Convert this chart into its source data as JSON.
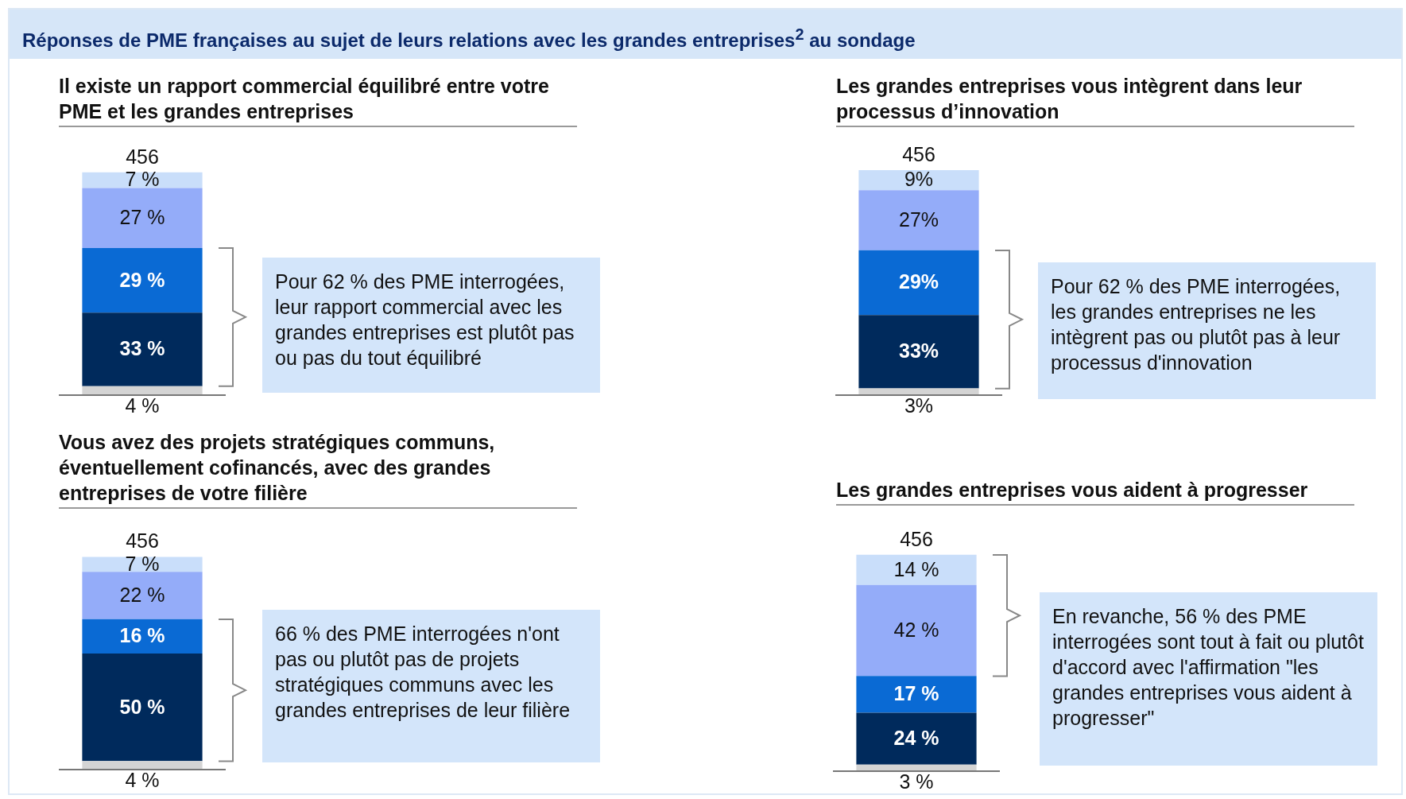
{
  "chart_data": [
    {
      "type": "bar",
      "stacked": true,
      "title": "Réponses de PME françaises au sujet de leurs relations avec les grandes entreprises$^{2}$ au sondage",
      "subtitle": "Il existe un rapport commercial équilibré entre votre PME et les grandes entreprises",
      "categories": [
        null
      ],
      "legend": false,
      "tick_labels": false,
      "series": [
        {
          "color": "#d4d4d4",
          "values": [
            4
          ],
          "value_labels": [
            "4 %"
          ]
        },
        {
          "color": "#002a5c",
          "values": [
            33
          ],
          "value_labels": [
            "33 %"
          ]
        },
        {
          "color": "#0a6ad4",
          "values": [
            29
          ],
          "value_labels": [
            "29 %"
          ]
        },
        {
          "color": "#94acf9",
          "values": [
            27
          ],
          "value_labels": [
            "27 %"
          ]
        },
        {
          "color": "#c9defa",
          "values": [
            7
          ],
          "value_labels": [
            "7 %"
          ]
        }
      ],
      "annotations": [
        "456",
        "Pour 62 % des PME interrogées, leur rapport commercial avec les grandes entreprises est plutôt pas ou pas du tout équilibré"
      ]
    },
    {
      "type": "bar",
      "stacked": true,
      "subtitle": "Les grandes entreprises vous intègrent dans leur processus d’innovation",
      "categories": [
        null
      ],
      "legend": false,
      "tick_labels": false,
      "series": [
        {
          "color": "#d4d4d4",
          "values": [
            3
          ],
          "value_labels": [
            "3%"
          ]
        },
        {
          "color": "#002a5c",
          "values": [
            33
          ],
          "value_labels": [
            "33%"
          ]
        },
        {
          "color": "#0a6ad4",
          "values": [
            29
          ],
          "value_labels": [
            "29%"
          ]
        },
        {
          "color": "#94acf9",
          "values": [
            27
          ],
          "value_labels": [
            "27%"
          ]
        },
        {
          "color": "#c9defa",
          "values": [
            9
          ],
          "value_labels": [
            "9%"
          ]
        }
      ],
      "annotations": [
        "456",
        "Pour 62 % des PME interrogées, les grandes entreprises ne les intègrent pas ou plutôt pas à leur processus d'innovation"
      ]
    },
    {
      "type": "bar",
      "stacked": true,
      "subtitle": "Vous avez des projets stratégiques communs, éventuellement cofinancés, avec des grandes entreprises de votre filière",
      "categories": [
        null
      ],
      "legend": false,
      "tick_labels": false,
      "series": [
        {
          "color": "#d4d4d4",
          "values": [
            4
          ],
          "value_labels": [
            "4 %"
          ]
        },
        {
          "color": "#002a5c",
          "values": [
            50
          ],
          "value_labels": [
            "50 %"
          ]
        },
        {
          "color": "#0a6ad4",
          "values": [
            16
          ],
          "value_labels": [
            "16 %"
          ]
        },
        {
          "color": "#94acf9",
          "values": [
            22
          ],
          "value_labels": [
            "22 %"
          ]
        },
        {
          "color": "#c9defa",
          "values": [
            7
          ],
          "value_labels": [
            "7 %"
          ]
        }
      ],
      "annotations": [
        "456",
        "66 % des PME interrogées n'ont pas ou plutôt pas de projets stratégiques communs avec les grandes entreprises de leur filière"
      ]
    },
    {
      "type": "bar",
      "stacked": true,
      "subtitle": "Les grandes entreprises vous aident à progresser",
      "categories": [
        null
      ],
      "legend": false,
      "tick_labels": false,
      "series": [
        {
          "color": "#d4d4d4",
          "values": [
            3
          ],
          "value_labels": [
            "3 %"
          ]
        },
        {
          "color": "#002a5c",
          "values": [
            24
          ],
          "value_labels": [
            "24 %"
          ]
        },
        {
          "color": "#0a6ad4",
          "values": [
            17
          ],
          "value_labels": [
            "17 %"
          ]
        },
        {
          "color": "#94acf9",
          "values": [
            42
          ],
          "value_labels": [
            "42 %"
          ]
        },
        {
          "color": "#c9defa",
          "values": [
            14
          ],
          "value_labels": [
            "14 %"
          ]
        }
      ],
      "annotations": [
        "456",
        "En revanche, 56 % des PME interrogées sont tout à fait ou plutôt d'accord avec l'affirmation \"les grandes entreprises vous aident à progresser\""
      ]
    }
  ]
}
